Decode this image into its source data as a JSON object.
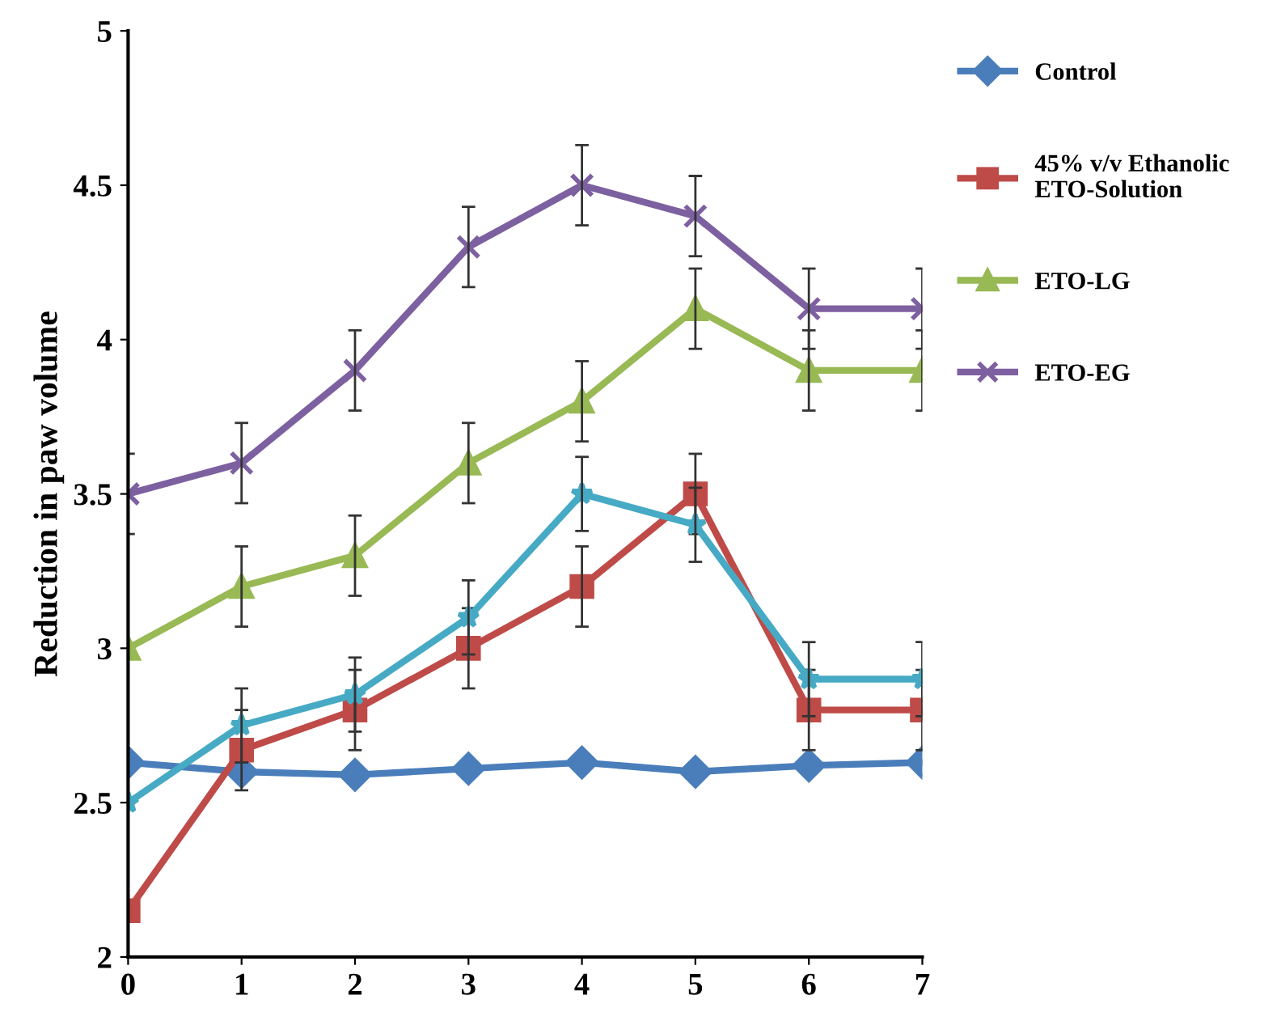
{
  "chart_data": {
    "type": "line",
    "ylabel": "Reduction in paw volume",
    "x": [
      0,
      1,
      2,
      3,
      4,
      5,
      6,
      7
    ],
    "xlim": [
      0,
      7
    ],
    "xticks": [
      0,
      1,
      2,
      3,
      4,
      5,
      6,
      7
    ],
    "ylim": [
      2,
      5
    ],
    "yticks": [
      2,
      2.5,
      3,
      3.5,
      4,
      4.5,
      5
    ],
    "grid": false,
    "legend": "right",
    "line_style": "solid",
    "series": [
      {
        "name": "Control",
        "color": "#4a7ebb",
        "marker": "diamond",
        "values": [
          2.63,
          2.6,
          2.59,
          2.61,
          2.63,
          2.6,
          2.62,
          2.63
        ]
      },
      {
        "name": "45% v/v Ethanolic\nETO-Solution",
        "color": "#be4b48",
        "marker": "square",
        "values": [
          2.15,
          2.67,
          2.8,
          3.0,
          3.2,
          3.5,
          2.8,
          2.8
        ],
        "errors": [
          null,
          0.13,
          0.13,
          0.13,
          0.13,
          0.13,
          0.13,
          0.13
        ]
      },
      {
        "name": "ETO-LG",
        "color": "#98b954",
        "marker": "triangle",
        "values": [
          3.0,
          3.2,
          3.3,
          3.6,
          3.8,
          4.1,
          3.9,
          3.9
        ],
        "errors": [
          null,
          0.13,
          0.13,
          0.13,
          0.13,
          0.13,
          0.13,
          0.13
        ]
      },
      {
        "name": "ETO-EG",
        "color": "#7d60a0",
        "marker": "cross",
        "values": [
          3.5,
          3.6,
          3.9,
          4.3,
          4.5,
          4.4,
          4.1,
          4.1
        ],
        "errors": [
          0.13,
          0.13,
          0.13,
          0.13,
          0.13,
          0.13,
          0.13,
          0.13
        ]
      },
      {
        "color": "#46aac5",
        "marker": "star",
        "values": [
          2.5,
          2.75,
          2.85,
          3.1,
          3.5,
          3.4,
          2.9,
          2.9
        ],
        "errors": [
          null,
          0.12,
          0.12,
          0.12,
          0.12,
          0.12,
          0.12,
          0.12
        ]
      }
    ]
  }
}
